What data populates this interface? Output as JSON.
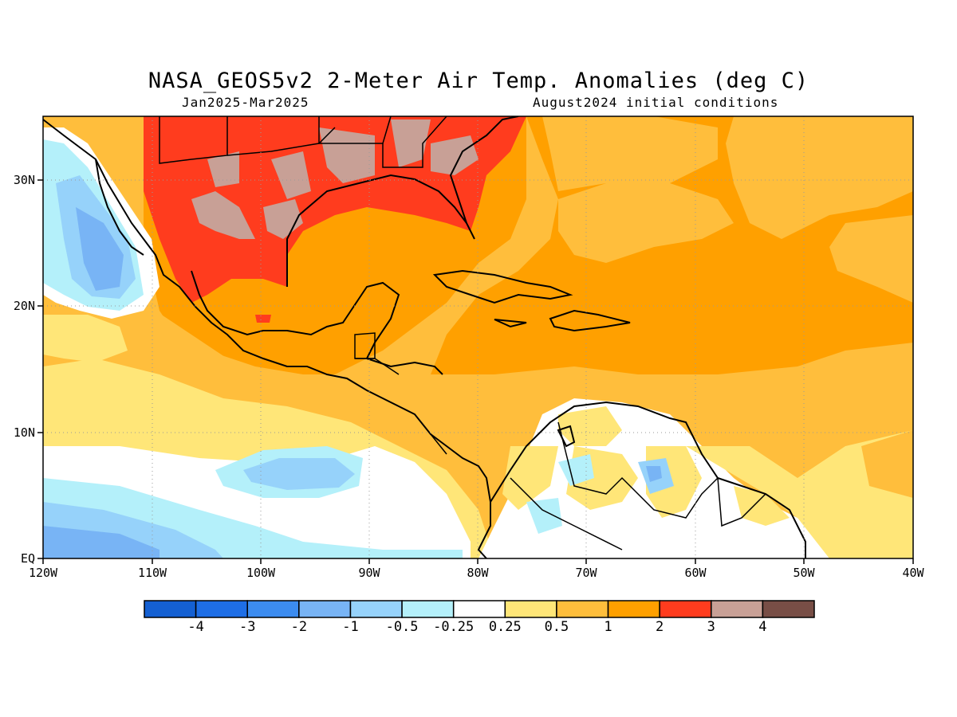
{
  "title": "NASA_GEOS5v2 2-Meter Air Temp. Anomalies (deg C)",
  "subtitle_left": "Jan2025-Mar2025",
  "subtitle_right": "August2024 initial conditions",
  "lat_labels": [
    "EQ",
    "10N",
    "20N",
    "30N"
  ],
  "lon_labels": [
    "120W",
    "110W",
    "100W",
    "90W",
    "80W",
    "70W",
    "60W",
    "50W",
    "40W"
  ],
  "colorbar": {
    "labels": [
      "-4",
      "-3",
      "-2",
      "-1",
      "-0.5",
      "-0.25",
      "0.25",
      "0.5",
      "1",
      "2",
      "3",
      "4"
    ],
    "colors": [
      "#1460d2",
      "#1e6ee6",
      "#3c8cf0",
      "#78b4f5",
      "#96d2fa",
      "#b4f0fa",
      "#ffffff",
      "#ffe678",
      "#ffbe3c",
      "#ffa000",
      "#ff3c1e",
      "#c8a096",
      "#784e46"
    ]
  }
}
